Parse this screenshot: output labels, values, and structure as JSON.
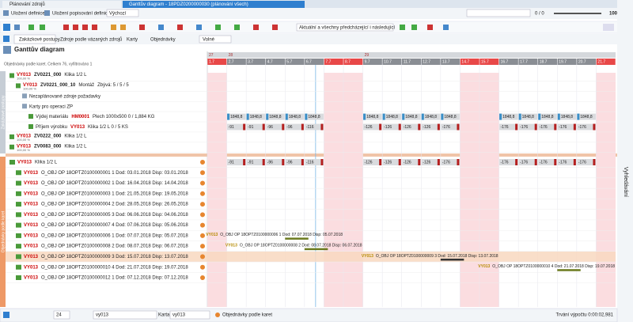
{
  "tabs": [
    "Plánování zdrojů",
    "Ganttův diagram - 18PDZ0200000030 (plánování všech)"
  ],
  "toolbar": {
    "save_definition": "Uložení definice",
    "save_description": "Uložení popisování definice",
    "preset": "Výchozí",
    "counter": "0 / 0",
    "zoom": "100%",
    "scope": "Aktuální a všechny předcházející i následující"
  },
  "view_tabs": [
    "Zakázkové postupy",
    "Zdroje podle vázaných zdrojů",
    "Karty",
    "Objednávky"
  ],
  "view_mode": "Volné",
  "title": "Ganttův diagram",
  "info": "Objednávky podle karet. Celkem 76, vyfiltrováno 1",
  "timeline": {
    "weeks": [
      "27",
      "28",
      "29"
    ],
    "days": [
      "1.7",
      "2.7",
      "3.7",
      "4.7",
      "5.7",
      "6.7",
      "7.7",
      "8.7",
      "9.7",
      "10.7",
      "11.7",
      "12.7",
      "13.7",
      "14.7",
      "15.7",
      "16.7",
      "17.7",
      "18.7",
      "19.7",
      "20.7",
      "21.7"
    ]
  },
  "upper_rows": [
    {
      "code": "VY013",
      "order": "ZV0221_000",
      "text": "Klika 1/2 L",
      "progress": "100,00 %"
    },
    {
      "code": "VY013",
      "order": "ZV0221_000_10",
      "text": "Montáž",
      "extra": "Zbývá: 5 / 5 / 5",
      "progress": "100,00 %"
    },
    {
      "text": "Nezaplánované zdroje požadavky"
    },
    {
      "text": "Karty pro operaci ZP"
    },
    {
      "text": "Výdej materiálu",
      "code": "HM0001",
      "extra": "Plech 1000x500   0 / 1,884   KG"
    },
    {
      "text": "Příjem výrobku",
      "code": "VY013",
      "extra": "Klika 1/2 L   0 / 5   KS"
    },
    {
      "code": "VY013",
      "order": "ZV0222_000",
      "text": "Klika 1/2 L",
      "progress": "100,00 %"
    },
    {
      "code": "VY013",
      "order": "ZV0083_000",
      "text": "Klika 1/2 L",
      "progress": "100,00 %"
    }
  ],
  "lower_rows": [
    {
      "code": "VY013",
      "text": "Klika 1/2 L"
    },
    {
      "code": "VY013",
      "text": "O_OBJ OP 18OPTZ0100000001  1  Dod: 03.01.2018  Disp: 03.01.2018"
    },
    {
      "code": "VY013",
      "text": "O_OBJ OP 18OPTZ0100000002  1  Dod: 16.04.2018  Disp: 14.04.2018"
    },
    {
      "code": "VY013",
      "text": "O_OBJ OP 18OPTZ0100000003  1  Dod: 21.05.2018  Disp: 19.05.2018"
    },
    {
      "code": "VY013",
      "text": "O_OBJ OP 18OPTZ0100000004  2  Dod: 28.05.2018  Disp: 26.05.2018"
    },
    {
      "code": "VY013",
      "text": "O_OBJ OP 18OPTZ0100000005  3  Dod: 06.06.2018  Disp: 04.06.2018"
    },
    {
      "code": "VY013",
      "text": "O_OBJ OP 18OPTZ0100000007  4  Dod: 07.06.2018  Disp: 05.06.2018"
    },
    {
      "code": "VY013",
      "text": "O_OBJ OP 18OPTZ0100000006  1  Dod: 07.07.2018  Disp: 05.07.2018"
    },
    {
      "code": "VY013",
      "text": "O_OBJ OP 18OPTZ0100000008  2  Dod: 08.07.2018  Disp: 06.07.2018"
    },
    {
      "code": "VY013",
      "text": "O_OBJ OP 18OPTZ0100000009  3  Dod: 15.07.2018  Disp: 13.07.2018"
    },
    {
      "code": "VY013",
      "text": "O_OBJ OP 18OPTZ0100000010  4  Dod: 21.07.2018  Disp: 19.07.2018"
    },
    {
      "code": "VY013",
      "text": "O_OBJ OP 18OPTZ0100000012  1  Dod: 07.12.2018  Disp: 07.12.2018"
    }
  ],
  "cells": {
    "material": [
      null,
      "1848,8",
      "1848,8",
      "1848,8",
      "1848,8",
      "1848,8",
      null,
      null,
      "1848,8",
      "1848,8",
      "1848,8",
      "1848,8",
      "1848,8",
      null,
      null,
      "1848,8",
      "1848,8",
      "1848,8",
      "1848,8",
      "1848,8",
      null
    ],
    "receipt": [
      null,
      "-91",
      "-91",
      "-96",
      "-96",
      "-116",
      null,
      null,
      "-126",
      "-126",
      "-126",
      "-126",
      "-176",
      null,
      null,
      "-176",
      "-176",
      "-176",
      "-176",
      "-176",
      null
    ],
    "summary": [
      null,
      "-91",
      "-91",
      "-96",
      "-96",
      "-116",
      null,
      null,
      "-126",
      "-126",
      "-126",
      "-126",
      "-176",
      null,
      null,
      "-176",
      "-176",
      "-176",
      "-176",
      "-176",
      null
    ]
  },
  "side_labels": {
    "upper": "Zakázkové postupy",
    "lower": "Objednávky podle karet",
    "search": "Vyhledávání"
  },
  "status": {
    "page_size": "24",
    "filter": "vy013",
    "card_label": "Karta",
    "card": "vy013",
    "mode": "Objednávky podle karet",
    "duration": "Trvání výpočtu 0:00:02,981"
  }
}
